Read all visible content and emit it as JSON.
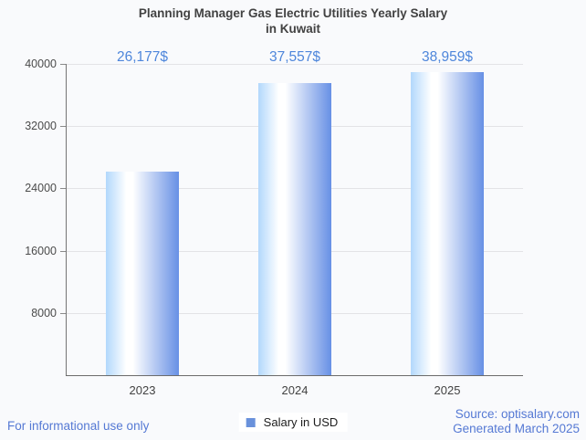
{
  "page": {
    "background": "#f9fafc"
  },
  "chart_data": {
    "type": "bar",
    "title": "Planning Manager Gas Electric Utilities Yearly Salary in Kuwait",
    "title_lines": [
      "Planning Manager Gas Electric Utilities Yearly Salary",
      "in Kuwait"
    ],
    "categories": [
      "2023",
      "2024",
      "2025"
    ],
    "values": [
      26177,
      37557,
      38959
    ],
    "value_labels": [
      "26,177$",
      "37,557$",
      "38,959$"
    ],
    "series": [
      {
        "name": "Salary in USD",
        "values": [
          26177,
          37557,
          38959
        ]
      }
    ],
    "xlabel": "",
    "ylabel": "",
    "ylim": [
      0,
      40000
    ],
    "yticks": [
      8000,
      16000,
      24000,
      32000,
      40000
    ],
    "grid": "horizontal",
    "legend_position": "bottom-center",
    "bar_gradient": [
      "#b2d8fc",
      "#ffffff",
      "#6790e5"
    ],
    "value_label_color": "#4e86db",
    "title_color": "#424242",
    "axis_label_color": "#424242"
  },
  "legend": {
    "label": "Salary in USD",
    "marker_color": "#6991db"
  },
  "footer": {
    "disclaimer": "For informational use only",
    "source": "Source: optisalary.com",
    "generated": "Generated March 2025",
    "link_color": "#5579d4"
  }
}
